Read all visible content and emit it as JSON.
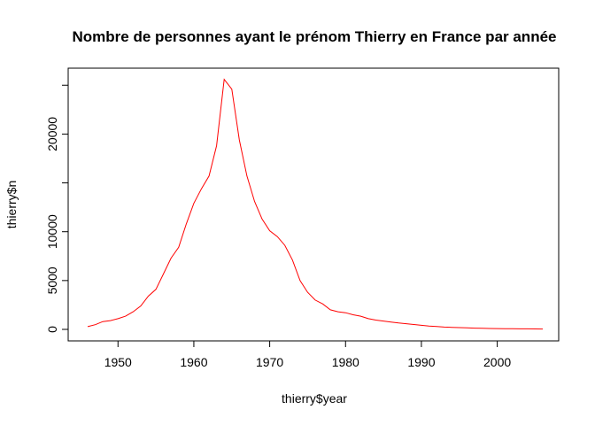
{
  "chart_data": {
    "type": "line",
    "title": "Nombre de personnes ayant le prénom Thierry en France par année",
    "xlabel": "thierry$year",
    "ylabel": "thierry$n",
    "xlim": [
      1946,
      2006
    ],
    "ylim": [
      0,
      25800
    ],
    "x_ticks": [
      1950,
      1960,
      1970,
      1980,
      1990,
      2000
    ],
    "y_ticks": [
      0,
      5000,
      10000,
      15000,
      20000,
      25000
    ],
    "y_tick_labels": [
      "0",
      "5000",
      "10000",
      "",
      "20000",
      ""
    ],
    "grid": false,
    "legend": "none",
    "line_color": "#ff0000",
    "series": [
      {
        "x": [
          1946,
          1947,
          1948,
          1949,
          1950,
          1951,
          1952,
          1953,
          1954,
          1955,
          1956,
          1957,
          1958,
          1959,
          1960,
          1961,
          1962,
          1963,
          1964,
          1965,
          1966,
          1967,
          1968,
          1969,
          1970,
          1971,
          1972,
          1973,
          1974,
          1975,
          1976,
          1977,
          1978,
          1979,
          1980,
          1981,
          1982,
          1983,
          1984,
          1985,
          1986,
          1987,
          1988,
          1989,
          1990,
          1991,
          1992,
          1993,
          1994,
          1995,
          1996,
          1997,
          1998,
          1999,
          2000,
          2001,
          2002,
          2003,
          2004,
          2005,
          2006
        ],
        "values": [
          280,
          480,
          800,
          900,
          1100,
          1350,
          1800,
          2400,
          3400,
          4100,
          5700,
          7300,
          8400,
          10800,
          12900,
          14400,
          15700,
          18800,
          25600,
          24600,
          19400,
          15700,
          13100,
          11300,
          10100,
          9500,
          8600,
          7100,
          5000,
          3800,
          3000,
          2600,
          2000,
          1800,
          1700,
          1500,
          1350,
          1100,
          950,
          850,
          750,
          650,
          580,
          500,
          420,
          340,
          290,
          240,
          210,
          180,
          150,
          130,
          110,
          95,
          85,
          75,
          65,
          55,
          50,
          45,
          40
        ]
      }
    ]
  }
}
